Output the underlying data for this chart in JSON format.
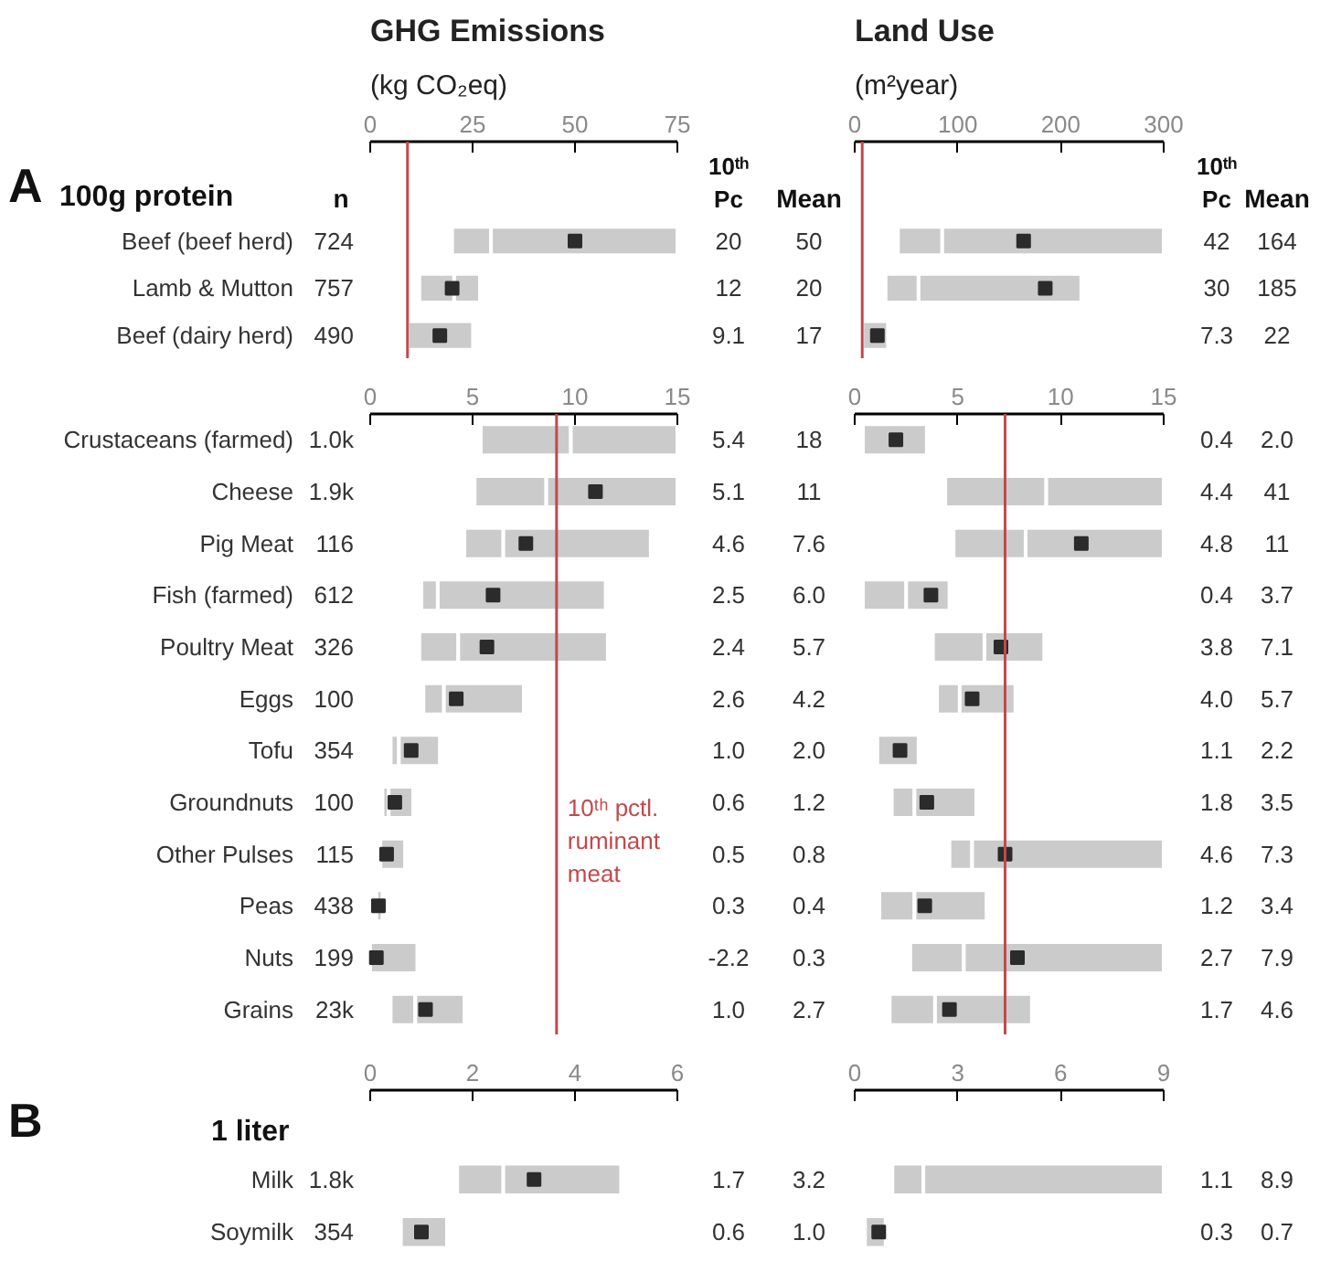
{
  "chart_data": [
    {
      "type": "bar",
      "orientation": "horizontal",
      "marker": "square",
      "title": "GHG Emissions",
      "xlabel": "(kg CO₂eq)",
      "categories": [
        "Beef (beef herd)",
        "Lamb & Mutton",
        "Beef (dairy herd)"
      ],
      "xlim": [
        0,
        75
      ],
      "xticks": [
        0,
        25,
        50,
        75
      ],
      "series": [
        {
          "color": "#cbcbcb",
          "base": [
            20,
            12,
            null
          ],
          "values": [
            9.5,
            8.5,
            null
          ]
        },
        {
          "color": "#cbcbcb",
          "base": [
            29.5,
            20.5,
            9.1
          ],
          "values": [
            45.5,
            6.3,
            16
          ]
        },
        {
          "type": "scatter",
          "color": "#2b2b2b",
          "values": [
            50,
            20,
            17
          ]
        }
      ],
      "ref_lines": [
        {
          "axis": "x",
          "value": 9.1,
          "color": "#c4484b"
        }
      ],
      "annotations": [
        "A",
        "100g protein",
        "n",
        "10ᵗʰ\nPc",
        "Mean",
        "724",
        "757",
        "490",
        "20",
        "12",
        "9.1",
        "50",
        "20",
        "17"
      ]
    },
    {
      "type": "bar",
      "orientation": "horizontal",
      "marker": "square",
      "title": "Land Use",
      "xlabel": "(m²year)",
      "categories": [
        null,
        null,
        null
      ],
      "xlim": [
        0,
        300
      ],
      "xticks": [
        0,
        100,
        200,
        300
      ],
      "series": [
        {
          "color": "#cbcbcb",
          "base": [
            42,
            30,
            null
          ],
          "values": [
            43,
            32,
            null
          ]
        },
        {
          "color": "#cbcbcb",
          "base": [
            85,
            62,
            7.3
          ],
          "values": [
            215,
            158,
            25
          ]
        },
        {
          "type": "scatter",
          "color": "#2b2b2b",
          "values": [
            164,
            185,
            22
          ]
        }
      ],
      "ref_lines": [
        {
          "axis": "x",
          "value": 7.3,
          "color": "#c4484b"
        }
      ],
      "annotations": [
        "10ᵗʰ\nPc",
        "Mean",
        "42",
        "30",
        "7.3",
        "164",
        "185",
        "22"
      ]
    },
    {
      "type": "bar",
      "orientation": "horizontal",
      "marker": "square",
      "categories": [
        "Crustaceans (farmed)",
        "Cheese",
        "Pig Meat",
        "Fish (farmed)",
        "Poultry Meat",
        "Eggs",
        "Tofu",
        "Groundnuts",
        "Other Pulses",
        "Peas",
        "Nuts",
        "Grains"
      ],
      "xlim": [
        0,
        15
      ],
      "xticks": [
        0,
        5,
        10,
        15
      ],
      "series": [
        {
          "color": "#cbcbcb",
          "base": [
            5.4,
            5.1,
            4.6,
            2.5,
            2.4,
            2.6,
            1.0,
            0.6,
            null,
            null,
            null,
            1.0
          ],
          "values": [
            4.4,
            3.5,
            1.9,
            0.8,
            1.9,
            1.0,
            0.4,
            0.3,
            null,
            null,
            null,
            1.2
          ]
        },
        {
          "color": "#cbcbcb",
          "base": [
            9.8,
            8.6,
            6.5,
            3.3,
            4.3,
            3.6,
            1.4,
            0.9,
            0.5,
            0.3,
            0,
            2.2
          ],
          "values": [
            5.2,
            6.4,
            7.2,
            8.2,
            7.3,
            3.9,
            2.0,
            1.2,
            1.2,
            0.3,
            2.3,
            2.4
          ]
        },
        {
          "type": "scatter",
          "color": "#2b2b2b",
          "values": [
            null,
            11,
            7.6,
            6.0,
            5.7,
            4.2,
            2.0,
            1.2,
            0.8,
            0.4,
            0.3,
            2.7
          ]
        }
      ],
      "ref_lines": [
        {
          "axis": "x",
          "value": 9.1,
          "color": "#c4484b",
          "label": "10ᵗʰ pctl.\nruminant\nmeat"
        }
      ],
      "annotations": [
        "1.0k",
        "1.9k",
        "116",
        "612",
        "326",
        "100",
        "354",
        "100",
        "115",
        "438",
        "199",
        "23k",
        "5.4",
        "5.1",
        "4.6",
        "2.5",
        "2.4",
        "2.6",
        "1.0",
        "0.6",
        "0.5",
        "0.3",
        "-2.2",
        "1.0",
        "18",
        "11",
        "7.6",
        "6.0",
        "5.7",
        "4.2",
        "2.0",
        "1.2",
        "0.8",
        "0.4",
        "0.3",
        "2.7"
      ]
    },
    {
      "type": "bar",
      "orientation": "horizontal",
      "marker": "square",
      "categories": [
        null,
        null,
        null,
        null,
        null,
        null,
        null,
        null,
        null,
        null,
        null,
        null
      ],
      "xlim": [
        0,
        15
      ],
      "xticks": [
        0,
        5,
        10,
        15
      ],
      "series": [
        {
          "color": "#cbcbcb",
          "base": [
            null,
            4.4,
            4.8,
            0.4,
            3.8,
            4.0,
            null,
            1.8,
            4.6,
            1.2,
            2.7,
            1.7
          ],
          "values": [
            null,
            4.9,
            3.5,
            2.1,
            2.5,
            1.1,
            null,
            1.1,
            1.1,
            1.7,
            2.6,
            2.2
          ]
        },
        {
          "color": "#cbcbcb",
          "base": [
            0.4,
            9.3,
            8.3,
            2.5,
            6.3,
            5.1,
            1.1,
            2.9,
            5.7,
            2.9,
            5.3,
            3.9
          ],
          "values": [
            3.1,
            5.7,
            6.7,
            2.1,
            2.9,
            2.7,
            2.0,
            3.0,
            9.3,
            3.5,
            9.7,
            4.7
          ]
        },
        {
          "type": "scatter",
          "color": "#2b2b2b",
          "values": [
            2.0,
            null,
            11,
            3.7,
            7.1,
            5.7,
            2.2,
            3.5,
            7.3,
            3.4,
            7.9,
            4.6
          ]
        }
      ],
      "ref_lines": [
        {
          "axis": "x",
          "value": 7.3,
          "color": "#c4484b"
        }
      ],
      "annotations": [
        "0.4",
        "4.4",
        "4.8",
        "0.4",
        "3.8",
        "4.0",
        "1.1",
        "1.8",
        "4.6",
        "1.2",
        "2.7",
        "1.7",
        "2.0",
        "41",
        "11",
        "3.7",
        "7.1",
        "5.7",
        "2.2",
        "3.5",
        "7.3",
        "3.4",
        "7.9",
        "4.6"
      ]
    },
    {
      "type": "bar",
      "orientation": "horizontal",
      "marker": "square",
      "categories": [
        "Milk",
        "Soymilk"
      ],
      "xlim": [
        0,
        6
      ],
      "xticks": [
        0,
        2,
        4,
        6
      ],
      "series": [
        {
          "color": "#cbcbcb",
          "base": [
            1.7,
            null
          ],
          "values": [
            0.9,
            null
          ]
        },
        {
          "color": "#cbcbcb",
          "base": [
            2.6,
            0.6
          ],
          "values": [
            2.3,
            0.9
          ]
        },
        {
          "type": "scatter",
          "color": "#2b2b2b",
          "values": [
            3.2,
            1.0
          ]
        }
      ],
      "annotations": [
        "B",
        "1 liter",
        "1.8k",
        "354",
        "1.7",
        "0.6",
        "3.2",
        "1.0"
      ]
    },
    {
      "type": "bar",
      "orientation": "horizontal",
      "marker": "square",
      "categories": [
        null,
        null
      ],
      "xlim": [
        0,
        9
      ],
      "xticks": [
        0,
        3,
        6,
        9
      ],
      "series": [
        {
          "color": "#cbcbcb",
          "base": [
            1.1,
            null
          ],
          "values": [
            0.9,
            null
          ]
        },
        {
          "color": "#cbcbcb",
          "base": [
            2.0,
            0.3
          ],
          "values": [
            7.0,
            0.6
          ]
        },
        {
          "type": "scatter",
          "color": "#2b2b2b",
          "values": [
            null,
            0.7
          ]
        }
      ],
      "annotations": [
        "1.1",
        "0.3",
        "8.9",
        "0.7"
      ]
    }
  ]
}
